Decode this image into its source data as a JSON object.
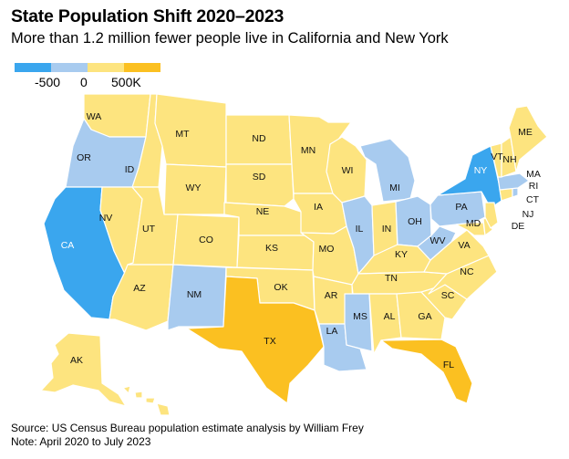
{
  "title": "State Population Shift 2020–2023",
  "subtitle": "More than 1.2 million fewer people live in California and New York",
  "legend": {
    "labels": [
      "-500",
      "0",
      "500K"
    ],
    "colors": [
      "#3aa6ee",
      "#a8cbef",
      "#fde47f",
      "#fbc021"
    ]
  },
  "colors": {
    "large_loss": "#3aa6ee",
    "loss": "#a8cbef",
    "gain": "#fde47f",
    "large_gain": "#fbc021",
    "border": "#ffffff",
    "label_on_dark": "#ffffff",
    "label": "#111111"
  },
  "states": [
    {
      "abbr": "WA",
      "category": "gain"
    },
    {
      "abbr": "OR",
      "category": "loss"
    },
    {
      "abbr": "CA",
      "category": "large_loss"
    },
    {
      "abbr": "ID",
      "category": "gain"
    },
    {
      "abbr": "NV",
      "category": "gain"
    },
    {
      "abbr": "MT",
      "category": "gain"
    },
    {
      "abbr": "WY",
      "category": "gain"
    },
    {
      "abbr": "UT",
      "category": "gain"
    },
    {
      "abbr": "AZ",
      "category": "gain"
    },
    {
      "abbr": "CO",
      "category": "gain"
    },
    {
      "abbr": "NM",
      "category": "loss"
    },
    {
      "abbr": "ND",
      "category": "gain"
    },
    {
      "abbr": "SD",
      "category": "gain"
    },
    {
      "abbr": "NE",
      "category": "gain"
    },
    {
      "abbr": "KS",
      "category": "gain"
    },
    {
      "abbr": "OK",
      "category": "gain"
    },
    {
      "abbr": "TX",
      "category": "large_gain"
    },
    {
      "abbr": "MN",
      "category": "gain"
    },
    {
      "abbr": "IA",
      "category": "gain"
    },
    {
      "abbr": "MO",
      "category": "gain"
    },
    {
      "abbr": "AR",
      "category": "gain"
    },
    {
      "abbr": "LA",
      "category": "loss"
    },
    {
      "abbr": "WI",
      "category": "gain"
    },
    {
      "abbr": "IL",
      "category": "loss"
    },
    {
      "abbr": "MI",
      "category": "loss"
    },
    {
      "abbr": "IN",
      "category": "gain"
    },
    {
      "abbr": "OH",
      "category": "loss"
    },
    {
      "abbr": "KY",
      "category": "gain"
    },
    {
      "abbr": "TN",
      "category": "gain"
    },
    {
      "abbr": "MS",
      "category": "loss"
    },
    {
      "abbr": "AL",
      "category": "gain"
    },
    {
      "abbr": "GA",
      "category": "gain"
    },
    {
      "abbr": "FL",
      "category": "large_gain"
    },
    {
      "abbr": "SC",
      "category": "gain"
    },
    {
      "abbr": "NC",
      "category": "gain"
    },
    {
      "abbr": "VA",
      "category": "gain"
    },
    {
      "abbr": "WV",
      "category": "loss"
    },
    {
      "abbr": "PA",
      "category": "loss"
    },
    {
      "abbr": "NY",
      "category": "large_loss"
    },
    {
      "abbr": "MD",
      "category": "gain"
    },
    {
      "abbr": "DE",
      "category": "gain"
    },
    {
      "abbr": "NJ",
      "category": "gain"
    },
    {
      "abbr": "CT",
      "category": "gain"
    },
    {
      "abbr": "RI",
      "category": "loss"
    },
    {
      "abbr": "MA",
      "category": "loss"
    },
    {
      "abbr": "VT",
      "category": "gain"
    },
    {
      "abbr": "NH",
      "category": "gain"
    },
    {
      "abbr": "ME",
      "category": "gain"
    },
    {
      "abbr": "AK",
      "category": "gain"
    },
    {
      "abbr": "HI",
      "category": "gain"
    }
  ],
  "source_lines": [
    "Source: US Census Bureau population estimate analysis by William Frey",
    "Note: April 2020 to July 2023"
  ]
}
